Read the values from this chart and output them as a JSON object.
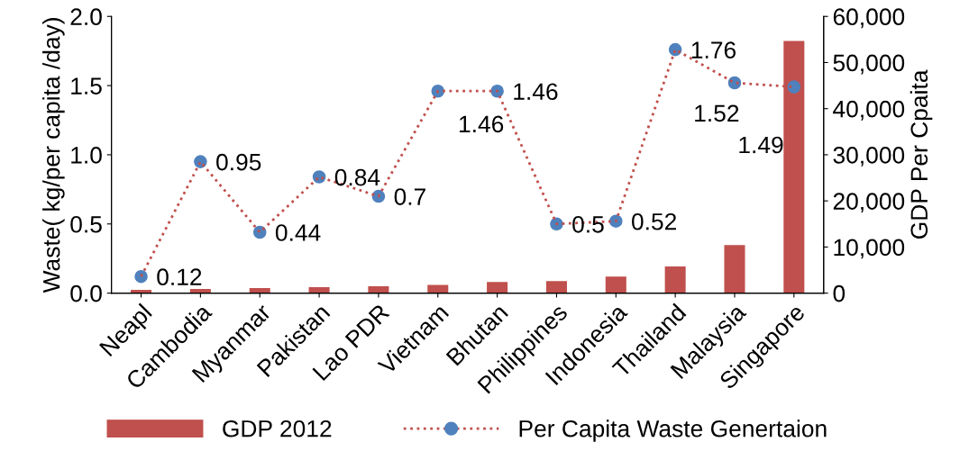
{
  "chart_data": {
    "type": "bar",
    "xlabel": null,
    "ylabel": "Waste( kg/per capita /day)",
    "y2label": "GDP Per Cpaita",
    "categories": [
      "Neapl",
      "Cambodia",
      "Myanmar",
      "Pakistan",
      "Lao PDR",
      "Vietnam",
      "Bhutan",
      "Philippines",
      "Indonesia",
      "Thailand",
      "Malaysia",
      "Singapore"
    ],
    "series": [
      {
        "name": "GDP 2012",
        "axis": "y2",
        "color": "#c0504d",
        "values": [
          700,
          900,
          1100,
          1300,
          1500,
          1800,
          2400,
          2600,
          3600,
          5800,
          10400,
          54700
        ]
      },
      {
        "name": "Per Capita Waste Genertaion",
        "type": "line",
        "axis": "y",
        "color": "#c0504d",
        "colors": [
          "#4f81bd",
          "#4f81bd",
          "#4f81bd",
          "#4f81bd",
          "#4f81bd",
          "#4f81bd",
          "#4f81bd",
          "#4f81bd",
          "#4f81bd",
          "#4f81bd",
          "#4f81bd",
          "#4f81bd"
        ],
        "marker": "circle",
        "line_style": "dotted",
        "values": [
          0.12,
          0.95,
          0.44,
          0.84,
          0.7,
          1.46,
          1.46,
          0.5,
          0.52,
          1.76,
          1.52,
          1.49
        ],
        "value_labels": [
          "0.12",
          "0.95",
          "0.44",
          "0.84",
          "0.7",
          "1.46",
          "1.46",
          "0.5",
          "0.52",
          "1.76",
          "1.52",
          "1.49"
        ]
      }
    ],
    "ylim": [
      0,
      2.0
    ],
    "yticks": [
      {
        "value": 0,
        "label": "0.0"
      },
      {
        "value": 0.5,
        "label": "0.5"
      },
      {
        "value": 1.0,
        "label": "1.0"
      },
      {
        "value": 1.5,
        "label": "1.5"
      },
      {
        "value": 2.0,
        "label": "2.0"
      }
    ],
    "y2lim": [
      0,
      60000
    ],
    "y2ticks": [
      {
        "value": 0,
        "label": "0"
      },
      {
        "value": 10000,
        "label": "10,000"
      },
      {
        "value": 20000,
        "label": "20,000"
      },
      {
        "value": 30000,
        "label": "30,000"
      },
      {
        "value": 40000,
        "label": "40,000"
      },
      {
        "value": 50000,
        "label": "50,000"
      },
      {
        "value": 60000,
        "label": "60,000"
      }
    ],
    "grid": false,
    "legend": "bottom"
  }
}
